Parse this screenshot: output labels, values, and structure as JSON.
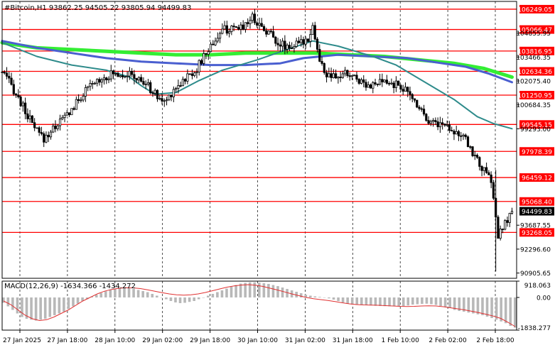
{
  "header": {
    "symbol_line": "#Bitcoin,H1  93862.25 94505.22 93805.94 94499.83",
    "macd_label": "MACD(12,26,9) -1634.366 -1434.272"
  },
  "colors": {
    "background": "#ffffff",
    "candle": "#000000",
    "level_line": "#ff0000",
    "level_label_bg": "#ff0000",
    "ma_fast": "#2e8b8b",
    "ma_mid": "#4a5fd0",
    "ma_slow": "#33ee33",
    "macd_hist": "#b8b8b8",
    "macd_signal": "#e03030",
    "grid": "#000000"
  },
  "chart_data": [
    {
      "type": "candlestick",
      "title": "#Bitcoin,H1",
      "ylim": [
        90600,
        106700
      ],
      "current_price": {
        "label": "94499.83",
        "value": 94499.83
      },
      "price_axis_ticks": [
        "104855.95",
        "103466.35",
        "102075.40",
        "100684.35",
        "99293.00",
        "93687.55",
        "92296.60",
        "90905.65"
      ],
      "price_axis_values": [
        104855.95,
        103466.35,
        102075.4,
        100684.35,
        99293.0,
        93687.55,
        92296.6,
        90905.65
      ],
      "x_tick_labels": [
        "27 Jan 2025",
        "27 Jan 18:00",
        "28 Jan 10:00",
        "29 Jan 02:00",
        "29 Jan 18:00",
        "30 Jan 10:00",
        "31 Jan 02:00",
        "31 Jan 18:00",
        "1 Feb 10:00",
        "2 Feb 02:00",
        "2 Feb 18:00"
      ],
      "levels": [
        {
          "label": "106249.05",
          "value": 106249.05
        },
        {
          "label": "105066.47",
          "value": 105066.47
        },
        {
          "label": "103816.95",
          "value": 103816.95
        },
        {
          "label": "102634.36",
          "value": 102634.36
        },
        {
          "label": "101250.95",
          "value": 101250.95
        },
        {
          "label": "99545.15",
          "value": 99545.15
        },
        {
          "label": "97978.39",
          "value": 97978.39
        },
        {
          "label": "96459.12",
          "value": 96459.12
        },
        {
          "label": "95068.40",
          "value": 95068.4
        },
        {
          "label": "93268.05",
          "value": 93268.05
        }
      ],
      "price_path": [
        [
          0,
          102600
        ],
        [
          4,
          101800
        ],
        [
          8,
          100800
        ],
        [
          14,
          99300
        ],
        [
          18,
          98700
        ],
        [
          24,
          99600
        ],
        [
          30,
          100400
        ],
        [
          36,
          101500
        ],
        [
          42,
          102200
        ],
        [
          48,
          102500
        ],
        [
          54,
          102500
        ],
        [
          58,
          102200
        ],
        [
          62,
          101900
        ],
        [
          66,
          101300
        ],
        [
          70,
          100800
        ],
        [
          74,
          101600
        ],
        [
          78,
          102100
        ],
        [
          84,
          102800
        ],
        [
          88,
          103700
        ],
        [
          92,
          104500
        ],
        [
          96,
          105100
        ],
        [
          100,
          105000
        ],
        [
          104,
          105300
        ],
        [
          108,
          105800
        ],
        [
          112,
          105200
        ],
        [
          116,
          104800
        ],
        [
          120,
          104200
        ],
        [
          124,
          104100
        ],
        [
          128,
          104200
        ],
        [
          132,
          104600
        ],
        [
          134,
          105300
        ],
        [
          137,
          103200
        ],
        [
          140,
          102400
        ],
        [
          144,
          102200
        ],
        [
          148,
          102500
        ],
        [
          152,
          102300
        ],
        [
          156,
          102000
        ],
        [
          160,
          101800
        ],
        [
          164,
          102000
        ],
        [
          168,
          101900
        ],
        [
          172,
          101800
        ],
        [
          176,
          101200
        ],
        [
          180,
          100600
        ],
        [
          184,
          99800
        ],
        [
          188,
          99600
        ],
        [
          192,
          99500
        ],
        [
          196,
          99100
        ],
        [
          200,
          98600
        ],
        [
          204,
          97700
        ],
        [
          208,
          96800
        ],
        [
          211,
          96300
        ],
        [
          214,
          93000
        ],
        [
          216,
          93500
        ],
        [
          218,
          94000
        ],
        [
          220,
          94500
        ]
      ],
      "moving_averages": [
        {
          "name": "fast",
          "color": "#2e8b8b",
          "points": [
            [
              0,
              104300
            ],
            [
              15,
              103500
            ],
            [
              30,
              103000
            ],
            [
              45,
              102700
            ],
            [
              55,
              102300
            ],
            [
              60,
              101800
            ],
            [
              66,
              101300
            ],
            [
              75,
              101400
            ],
            [
              85,
              102100
            ],
            [
              95,
              102700
            ],
            [
              110,
              103300
            ],
            [
              125,
              104000
            ],
            [
              134,
              104400
            ],
            [
              145,
              104100
            ],
            [
              160,
              103500
            ],
            [
              170,
              103000
            ],
            [
              180,
              102200
            ],
            [
              195,
              101000
            ],
            [
              205,
              100000
            ],
            [
              212,
              99600
            ],
            [
              220,
              99300
            ]
          ]
        },
        {
          "name": "mid",
          "color": "#4a5fd0",
          "points": [
            [
              0,
              104400
            ],
            [
              15,
              104000
            ],
            [
              30,
              103700
            ],
            [
              45,
              103400
            ],
            [
              60,
              103200
            ],
            [
              75,
              103100
            ],
            [
              90,
              103000
            ],
            [
              105,
              103000
            ],
            [
              120,
              103100
            ],
            [
              130,
              103400
            ],
            [
              145,
              103600
            ],
            [
              160,
              103500
            ],
            [
              175,
              103400
            ],
            [
              190,
              103100
            ],
            [
              200,
              102900
            ],
            [
              210,
              102500
            ],
            [
              220,
              102000
            ]
          ]
        },
        {
          "name": "slow",
          "color": "#33ee33",
          "points": [
            [
              0,
              104300
            ],
            [
              15,
              104000
            ],
            [
              30,
              103900
            ],
            [
              45,
              103800
            ],
            [
              60,
              103700
            ],
            [
              75,
              103600
            ],
            [
              90,
              103600
            ],
            [
              105,
              103700
            ],
            [
              120,
              103700
            ],
            [
              135,
              103700
            ],
            [
              150,
              103600
            ],
            [
              165,
              103500
            ],
            [
              180,
              103300
            ],
            [
              195,
              103100
            ],
            [
              208,
              102800
            ],
            [
              220,
              102300
            ]
          ]
        }
      ]
    },
    {
      "type": "macd",
      "title": "MACD(12,26,9) -1634.366 -1434.272",
      "ylim": [
        -1838.277,
        918.063
      ],
      "tick_labels": [
        "918.063",
        "0.00",
        "-1838.277"
      ],
      "tick_values": [
        918.063,
        0,
        -1838.277
      ],
      "histogram": [
        -300,
        -500,
        -700,
        -900,
        -1100,
        -1200,
        -1250,
        -1300,
        -1250,
        -1200,
        -1100,
        -1000,
        -900,
        -800,
        -650,
        -500,
        -350,
        -200,
        -100,
        50,
        150,
        250,
        350,
        450,
        500,
        550,
        550,
        520,
        480,
        420,
        360,
        300,
        200,
        100,
        0,
        -100,
        -200,
        -280,
        -320,
        -300,
        -250,
        -200,
        -100,
        0,
        100,
        200,
        300,
        400,
        500,
        600,
        700,
        780,
        820,
        850,
        850,
        830,
        800,
        760,
        700,
        640,
        560,
        480,
        400,
        320,
        240,
        160,
        100,
        60,
        30,
        0,
        -50,
        -120,
        -200,
        -280,
        -350,
        -400,
        -420,
        -430,
        -440,
        -450,
        -470,
        -480,
        -490,
        -500,
        -500,
        -500,
        -480,
        -450,
        -400,
        -380,
        -360,
        -350,
        -380,
        -420,
        -480,
        -540,
        -600,
        -700,
        -760,
        -800,
        -850,
        -900,
        -950,
        -1000,
        -1080,
        -1160,
        -1250,
        -1350,
        -1450,
        -1600,
        -1700
      ],
      "signal": [
        -200,
        -400,
        -700,
        -1000,
        -1200,
        -1300,
        -1250,
        -1100,
        -900,
        -700,
        -450,
        -200,
        0,
        200,
        350,
        450,
        520,
        550,
        540,
        500,
        430,
        350,
        270,
        200,
        150,
        130,
        150,
        200,
        280,
        380,
        480,
        580,
        650,
        700,
        720,
        690,
        620,
        520,
        420,
        310,
        200,
        100,
        0,
        -70,
        -120,
        -170,
        -230,
        -300,
        -360,
        -400,
        -420,
        -430,
        -440,
        -460,
        -480,
        -500,
        -510,
        -500,
        -480,
        -470,
        -480,
        -520,
        -580,
        -640,
        -700,
        -780,
        -860,
        -950,
        -1050,
        -1180,
        -1400,
        -1640
      ]
    }
  ]
}
